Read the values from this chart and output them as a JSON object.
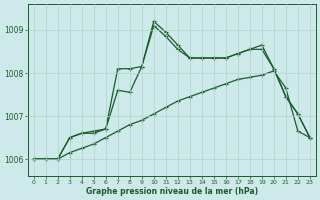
{
  "title": "Graphe pression niveau de la mer (hPa)",
  "bg_color": "#cde9e9",
  "grid_color": "#b0d4cc",
  "line_color": "#1a5c2a",
  "xlim": [
    -0.5,
    23.5
  ],
  "ylim": [
    1005.6,
    1009.6
  ],
  "yticks": [
    1006,
    1007,
    1008,
    1009
  ],
  "xticks": [
    0,
    1,
    2,
    3,
    4,
    5,
    6,
    7,
    8,
    9,
    10,
    11,
    12,
    13,
    14,
    15,
    16,
    17,
    18,
    19,
    20,
    21,
    22,
    23
  ],
  "line_spiky": {
    "x": [
      0,
      1,
      2,
      3,
      4,
      5,
      6,
      7,
      8,
      9,
      10,
      11,
      12,
      13,
      14,
      15,
      16,
      17,
      18,
      19,
      20,
      21,
      22,
      23
    ],
    "y": [
      1006.0,
      1006.0,
      1006.0,
      1006.5,
      1006.6,
      1006.6,
      1006.7,
      1007.6,
      1007.55,
      1008.15,
      1009.1,
      1008.85,
      1008.55,
      1008.35,
      1008.35,
      1008.35,
      1008.35,
      1008.45,
      1008.55,
      1008.55,
      1008.1,
      1007.45,
      1007.05,
      1006.5
    ]
  },
  "line_smooth": {
    "x": [
      0,
      1,
      2,
      3,
      4,
      5,
      6,
      7,
      8,
      9,
      10,
      11,
      12,
      13,
      14,
      15,
      16,
      17,
      18,
      19,
      20,
      21,
      22,
      23
    ],
    "y": [
      1006.0,
      1006.0,
      1006.0,
      1006.15,
      1006.25,
      1006.35,
      1006.5,
      1006.65,
      1006.8,
      1006.9,
      1007.05,
      1007.2,
      1007.35,
      1007.45,
      1007.55,
      1007.65,
      1007.75,
      1007.85,
      1007.9,
      1007.95,
      1008.05,
      1007.65,
      1006.65,
      1006.5
    ]
  },
  "line_peak": {
    "x": [
      0,
      1,
      2,
      3,
      4,
      5,
      6,
      7,
      8,
      9,
      10,
      11,
      12,
      13,
      14,
      15,
      16,
      17,
      18,
      19,
      20,
      21,
      22,
      23
    ],
    "y": [
      1006.0,
      1006.0,
      1006.0,
      1006.5,
      1006.6,
      1006.65,
      1006.7,
      1008.1,
      1008.1,
      1008.15,
      1009.2,
      1008.95,
      1008.65,
      1008.35,
      1008.35,
      1008.35,
      1008.35,
      1008.45,
      1008.55,
      1008.65,
      1008.1,
      1007.45,
      1007.05,
      1006.5
    ]
  }
}
